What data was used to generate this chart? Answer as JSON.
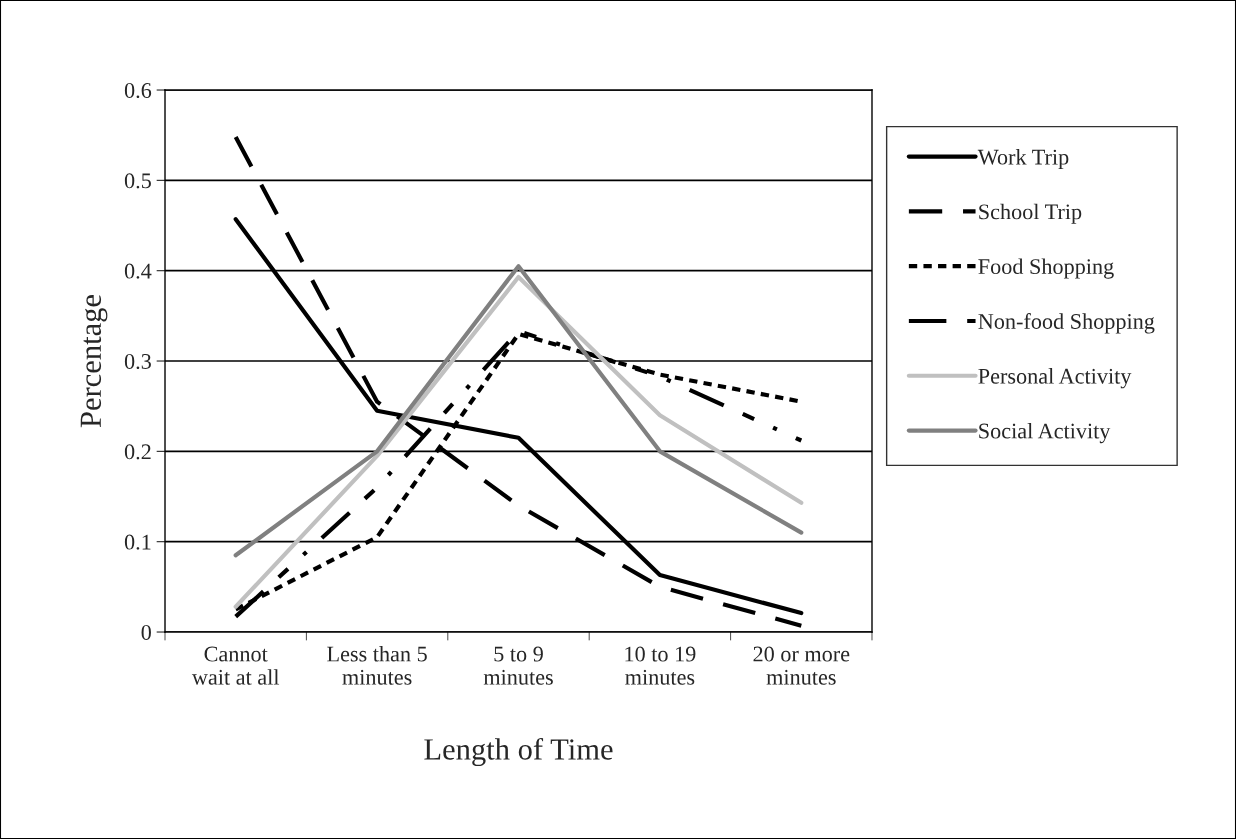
{
  "chart_data": {
    "type": "line",
    "xlabel": "Length of Time",
    "ylabel": "Percentage",
    "categories": [
      "Cannot\nwait at all",
      "Less than 5\nminutes",
      "5 to 9\nminutes",
      "10 to 19\nminutes",
      "20 or more\nminutes"
    ],
    "series": [
      {
        "name": "Work Trip",
        "color": "#000000",
        "line_style": "solid",
        "values": [
          0.457,
          0.245,
          0.215,
          0.063,
          0.021
        ]
      },
      {
        "name": "School Trip",
        "color": "#000000",
        "line_style": "dashed",
        "values": [
          0.548,
          0.255,
          0.14,
          0.05,
          0.007
        ]
      },
      {
        "name": "Food Shopping",
        "color": "#000000",
        "line_style": "dotted",
        "values": [
          0.025,
          0.105,
          0.33,
          0.285,
          0.255
        ]
      },
      {
        "name": "Non-food Shopping",
        "color": "#000000",
        "line_style": "dashdot",
        "values": [
          0.017,
          0.16,
          0.333,
          0.283,
          0.212
        ]
      },
      {
        "name": "Personal Activity",
        "color": "#c0c0c0",
        "line_style": "solid",
        "values": [
          0.028,
          0.195,
          0.393,
          0.24,
          0.143
        ]
      },
      {
        "name": "Social Activity",
        "color": "#808080",
        "line_style": "solid",
        "values": [
          0.085,
          0.2,
          0.405,
          0.2,
          0.11
        ]
      }
    ],
    "ylim": [
      0,
      0.6
    ],
    "yticks": [
      0,
      0.1,
      0.2,
      0.3,
      0.4,
      0.5,
      0.6
    ],
    "grid": "y",
    "legend": "right",
    "marker": "none"
  }
}
